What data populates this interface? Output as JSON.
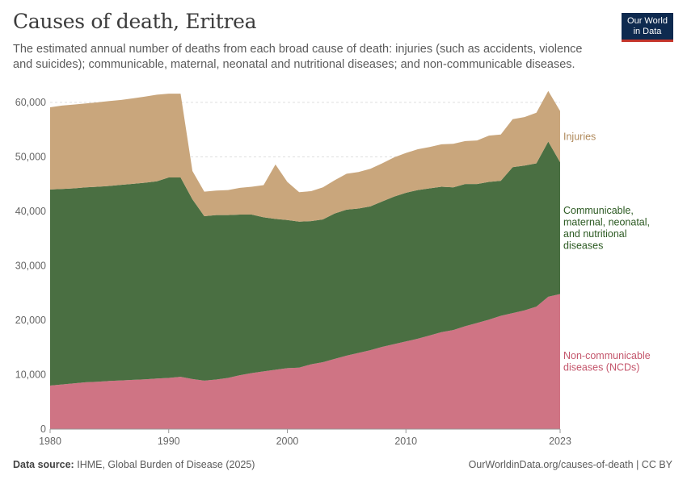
{
  "header": {
    "title": "Causes of death, Eritrea",
    "subtitle": "The estimated annual number of deaths from each broad cause of death: injuries (such as accidents, violence and suicides); communicable, maternal, neonatal and nutritional diseases; and non-communicable diseases.",
    "logo_line1": "Our World",
    "logo_line2": "in Data"
  },
  "footer": {
    "source_label": "Data source:",
    "source_text": "IHME, Global Burden of Disease (2025)",
    "url": "OurWorldinData.org/causes-of-death | CC BY"
  },
  "chart_data": {
    "type": "area",
    "stacked": true,
    "x": [
      1980,
      1981,
      1982,
      1983,
      1984,
      1985,
      1986,
      1987,
      1988,
      1989,
      1990,
      1991,
      1992,
      1993,
      1994,
      1995,
      1996,
      1997,
      1998,
      1999,
      2000,
      2001,
      2002,
      2003,
      2004,
      2005,
      2006,
      2007,
      2008,
      2009,
      2010,
      2011,
      2012,
      2013,
      2014,
      2015,
      2016,
      2017,
      2018,
      2019,
      2020,
      2021,
      2022,
      2023
    ],
    "series": [
      {
        "name": "Non-communicable diseases (NCDs)",
        "label_lines": [
          "Non-communicable",
          "diseases (NCDs)"
        ],
        "color": "#cf7484",
        "label_color": "#c4566c",
        "values": [
          8000,
          8200,
          8400,
          8600,
          8700,
          8850,
          8950,
          9050,
          9150,
          9300,
          9400,
          9600,
          9200,
          8900,
          9100,
          9400,
          9900,
          10300,
          10600,
          10900,
          11200,
          11300,
          11900,
          12300,
          12900,
          13500,
          14000,
          14500,
          15100,
          15600,
          16100,
          16600,
          17200,
          17800,
          18200,
          18900,
          19500,
          20100,
          20800,
          21300,
          21800,
          22500,
          24300,
          24800
        ]
      },
      {
        "name": "Communicable, maternal, neonatal, and nutritional diseases",
        "label_lines": [
          "Communicable,",
          "maternal, neonatal,",
          "and nutritional",
          "diseases"
        ],
        "color": "#4a6f42",
        "label_color": "#2c5a22",
        "values": [
          36000,
          35900,
          35800,
          35800,
          35800,
          35800,
          35900,
          36000,
          36100,
          36200,
          36800,
          36600,
          33000,
          30200,
          30200,
          29900,
          29500,
          29100,
          28300,
          27700,
          27200,
          26800,
          26300,
          26200,
          26700,
          26800,
          26500,
          26400,
          26700,
          27100,
          27300,
          27300,
          27000,
          26700,
          26200,
          26100,
          25500,
          25300,
          24800,
          26800,
          26600,
          26300,
          28500,
          24200
        ]
      },
      {
        "name": "Injuries",
        "label_lines": [
          "Injuries"
        ],
        "color": "#c9a67c",
        "label_color": "#b08a5c",
        "values": [
          15100,
          15300,
          15400,
          15400,
          15500,
          15600,
          15600,
          15700,
          15800,
          15900,
          15400,
          15400,
          5200,
          4500,
          4500,
          4600,
          4900,
          5100,
          5900,
          10000,
          7000,
          5400,
          5500,
          5900,
          6100,
          6600,
          6700,
          6900,
          7000,
          7200,
          7300,
          7500,
          7600,
          7800,
          8000,
          7900,
          8000,
          8500,
          8500,
          8800,
          8900,
          9300,
          9300,
          9400
        ]
      }
    ],
    "ylim": [
      0,
      62500
    ],
    "y_ticks": [
      "0",
      "10,000",
      "20,000",
      "30,000",
      "40,000",
      "50,000",
      "60,000"
    ],
    "y_tick_values": [
      0,
      10000,
      20000,
      30000,
      40000,
      50000,
      60000
    ],
    "x_ticks": [
      "1980",
      "1990",
      "2000",
      "2010",
      "2023"
    ],
    "x_tick_values": [
      1980,
      1990,
      2000,
      2010,
      2023
    ],
    "xlabel": "",
    "ylabel": "",
    "grid": true,
    "legend": "right"
  }
}
